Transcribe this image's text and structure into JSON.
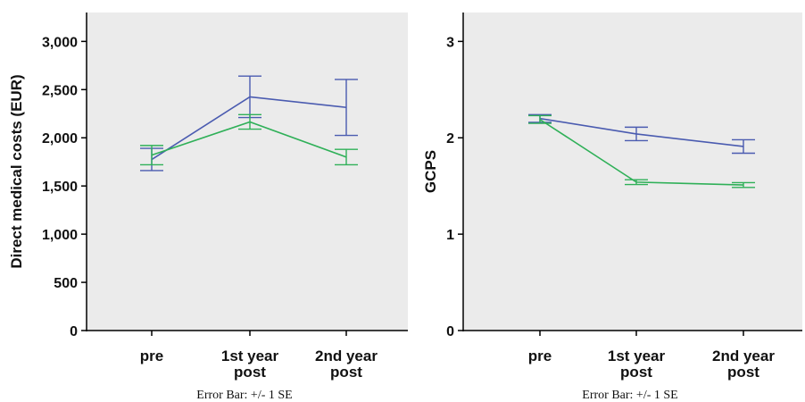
{
  "colors": {
    "plot_bg": "#ebebeb",
    "axis": "#000000",
    "series_blue": "#4a5bb0",
    "series_green": "#2fb058"
  },
  "chart_data": [
    {
      "type": "line",
      "ylabel": "Direct medical costs (EUR)",
      "xlabel": "",
      "footnote": "Error Bar: +/- 1 SE",
      "categories": [
        [
          "pre"
        ],
        [
          "1st year",
          "post"
        ],
        [
          "2nd year",
          "post"
        ]
      ],
      "ylim": [
        0,
        3300
      ],
      "yticks": [
        0,
        500,
        1000,
        1500,
        2000,
        2500,
        3000
      ],
      "ytick_labels": [
        "0",
        "500",
        "1,000",
        "1,500",
        "2,000",
        "2,500",
        "3,000"
      ],
      "grid": false,
      "series": [
        {
          "color": "#4a5bb0",
          "values": [
            1775,
            2425,
            2315
          ],
          "se": [
            115,
            215,
            290
          ]
        },
        {
          "color": "#2fb058",
          "values": [
            1820,
            2165,
            1800
          ],
          "se": [
            100,
            75,
            80
          ]
        }
      ]
    },
    {
      "type": "line",
      "ylabel": "GCPS",
      "xlabel": "",
      "footnote": "Error Bar: +/- 1 SE",
      "categories": [
        [
          "pre"
        ],
        [
          "1st year",
          "post"
        ],
        [
          "2nd year",
          "post"
        ]
      ],
      "ylim": [
        0,
        3.3
      ],
      "yticks": [
        0,
        1,
        2,
        3
      ],
      "ytick_labels": [
        "0",
        "1",
        "2",
        "3"
      ],
      "grid": false,
      "series": [
        {
          "color": "#4a5bb0",
          "values": [
            2.2,
            2.04,
            1.91
          ],
          "se": [
            0.04,
            0.07,
            0.07
          ]
        },
        {
          "color": "#2fb058",
          "values": [
            2.19,
            1.54,
            1.51
          ],
          "se": [
            0.04,
            0.025,
            0.025
          ]
        }
      ]
    }
  ]
}
